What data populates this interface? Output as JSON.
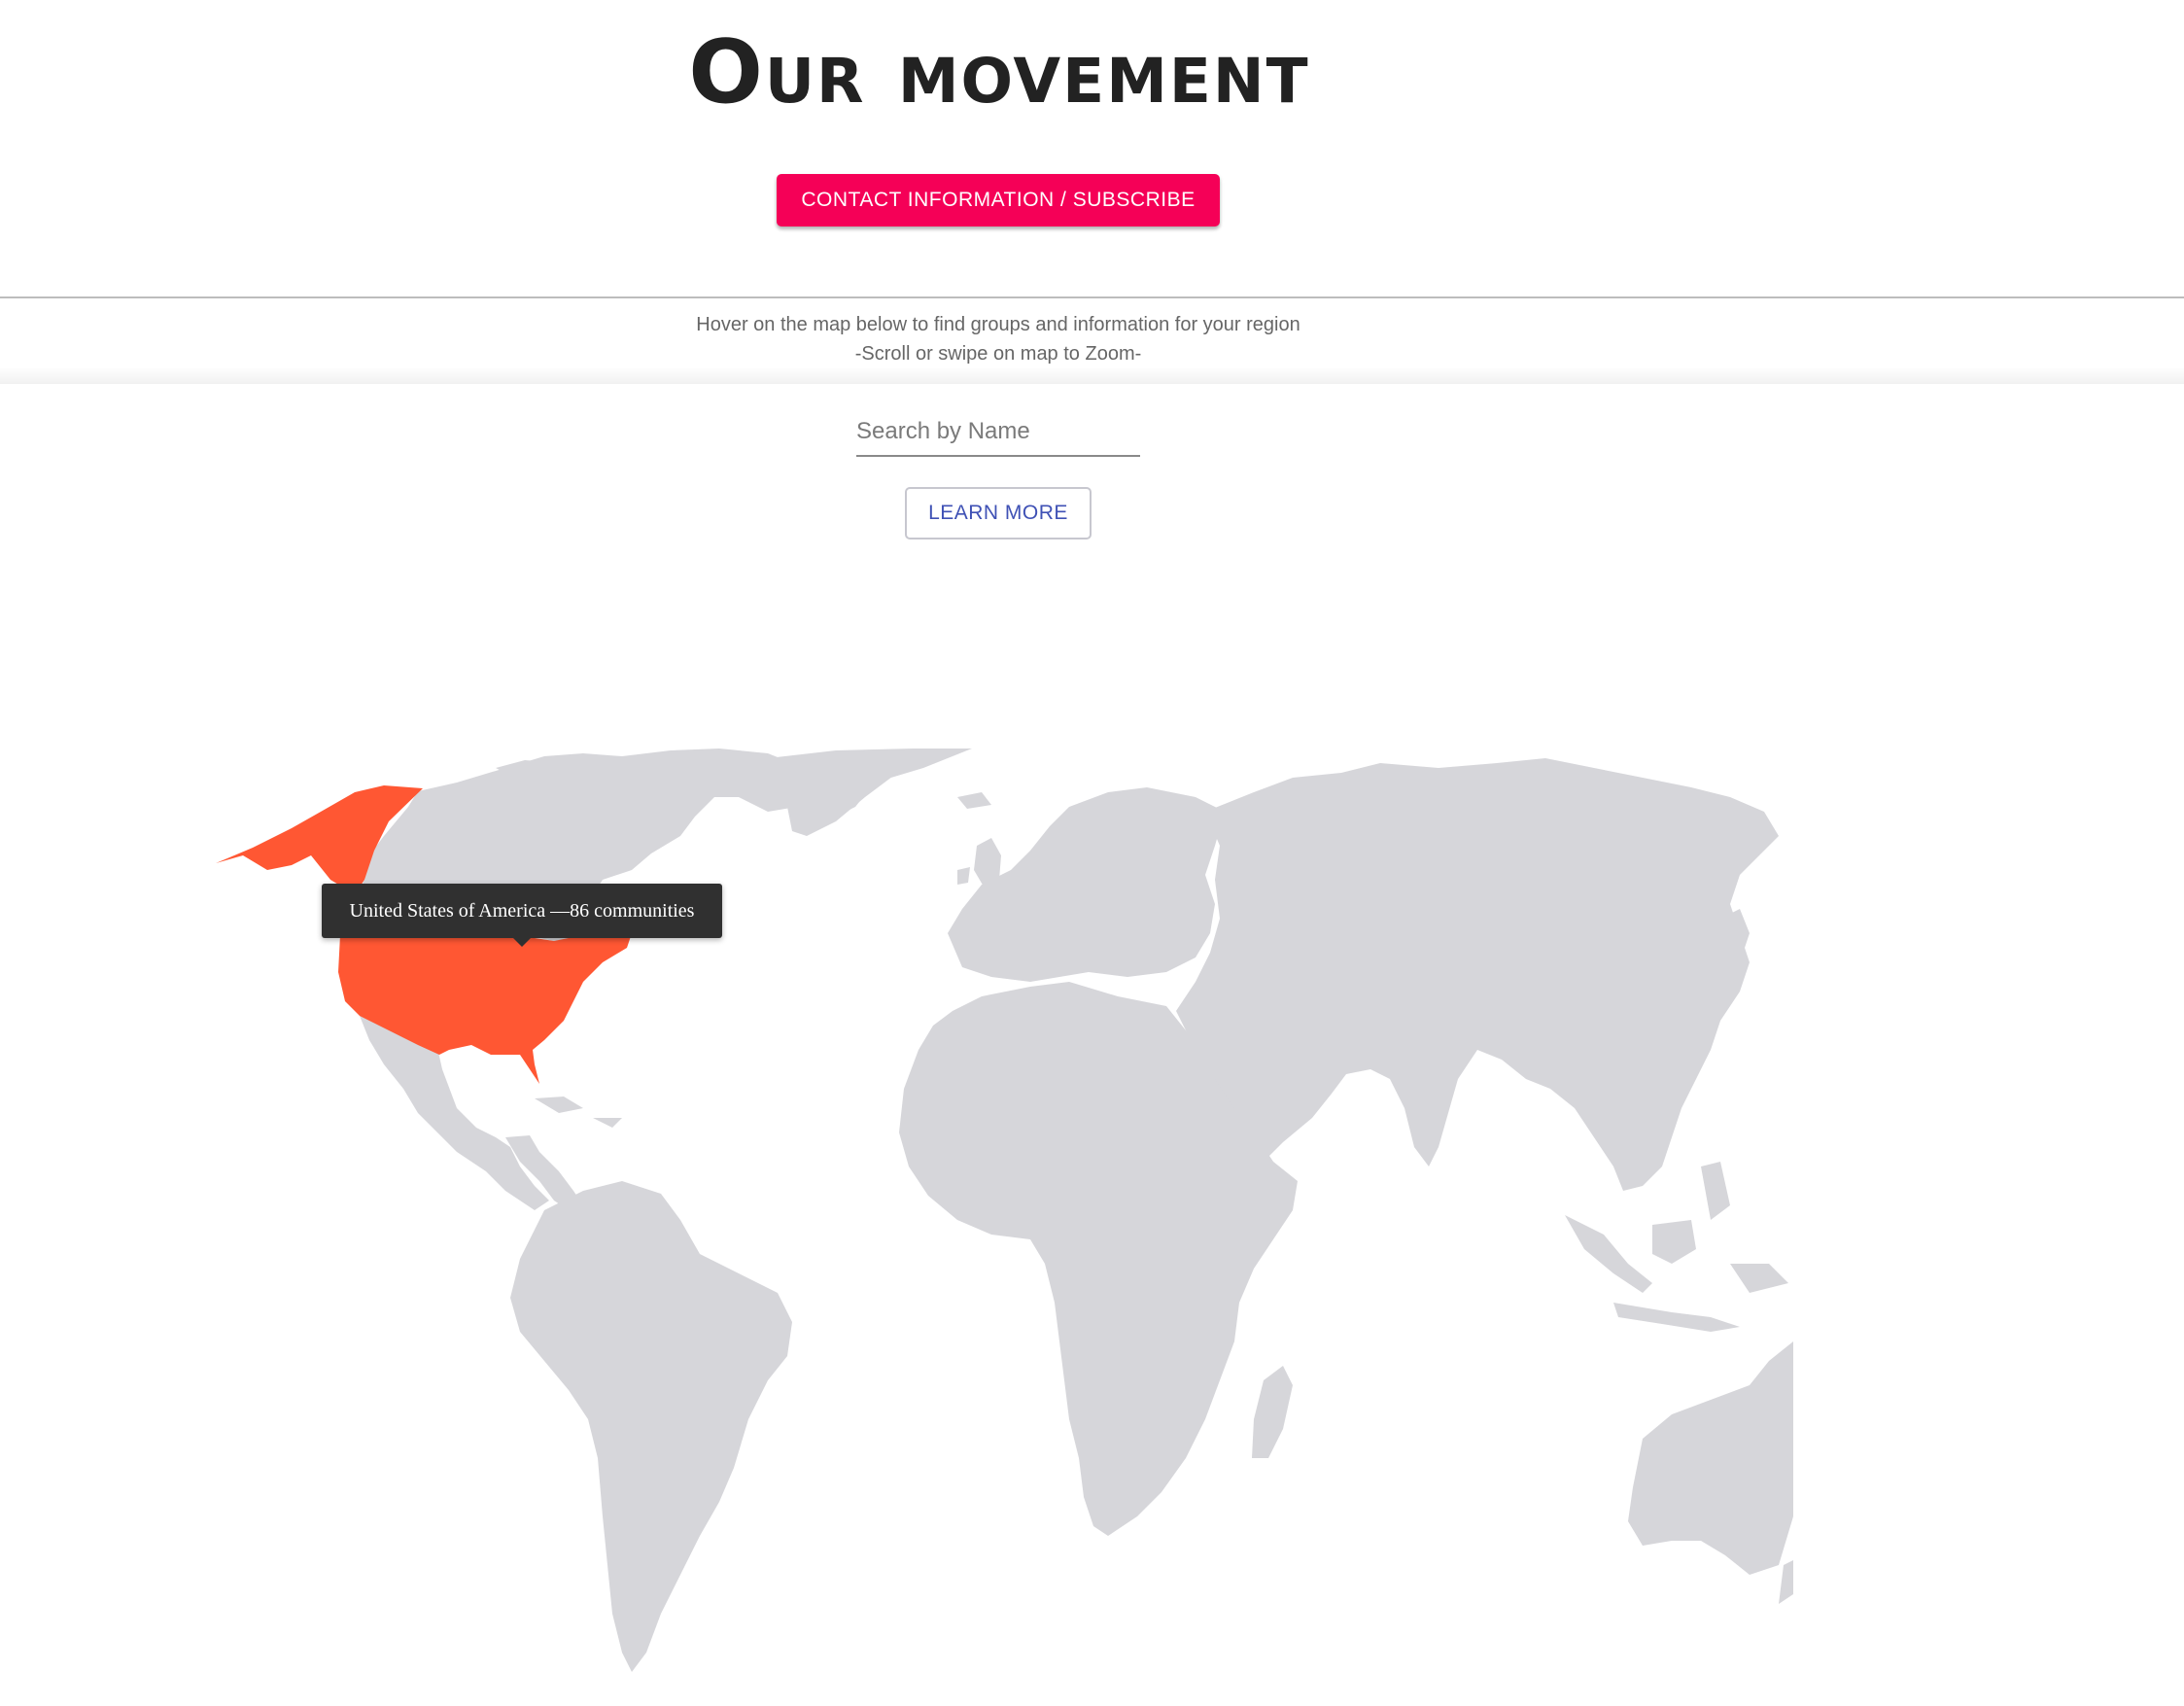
{
  "header": {
    "title": "Our movement",
    "contact_button_label": "CONTACT INFORMATION / SUBSCRIBE"
  },
  "hint": {
    "line1": "Hover on the map below to find groups and information for your region",
    "line2": "-Scroll or swipe on map to Zoom-"
  },
  "search": {
    "placeholder": "Search by Name",
    "value": ""
  },
  "learn_more_label": "LEARN MORE",
  "map": {
    "land_color": "#d6d6da",
    "highlight_color": "#ff5733",
    "highlighted_country": "United States of America",
    "tooltip": "United States of America —86 communities",
    "communities": 86
  },
  "colors": {
    "accent": "#f50057",
    "link": "#3f51b5"
  }
}
